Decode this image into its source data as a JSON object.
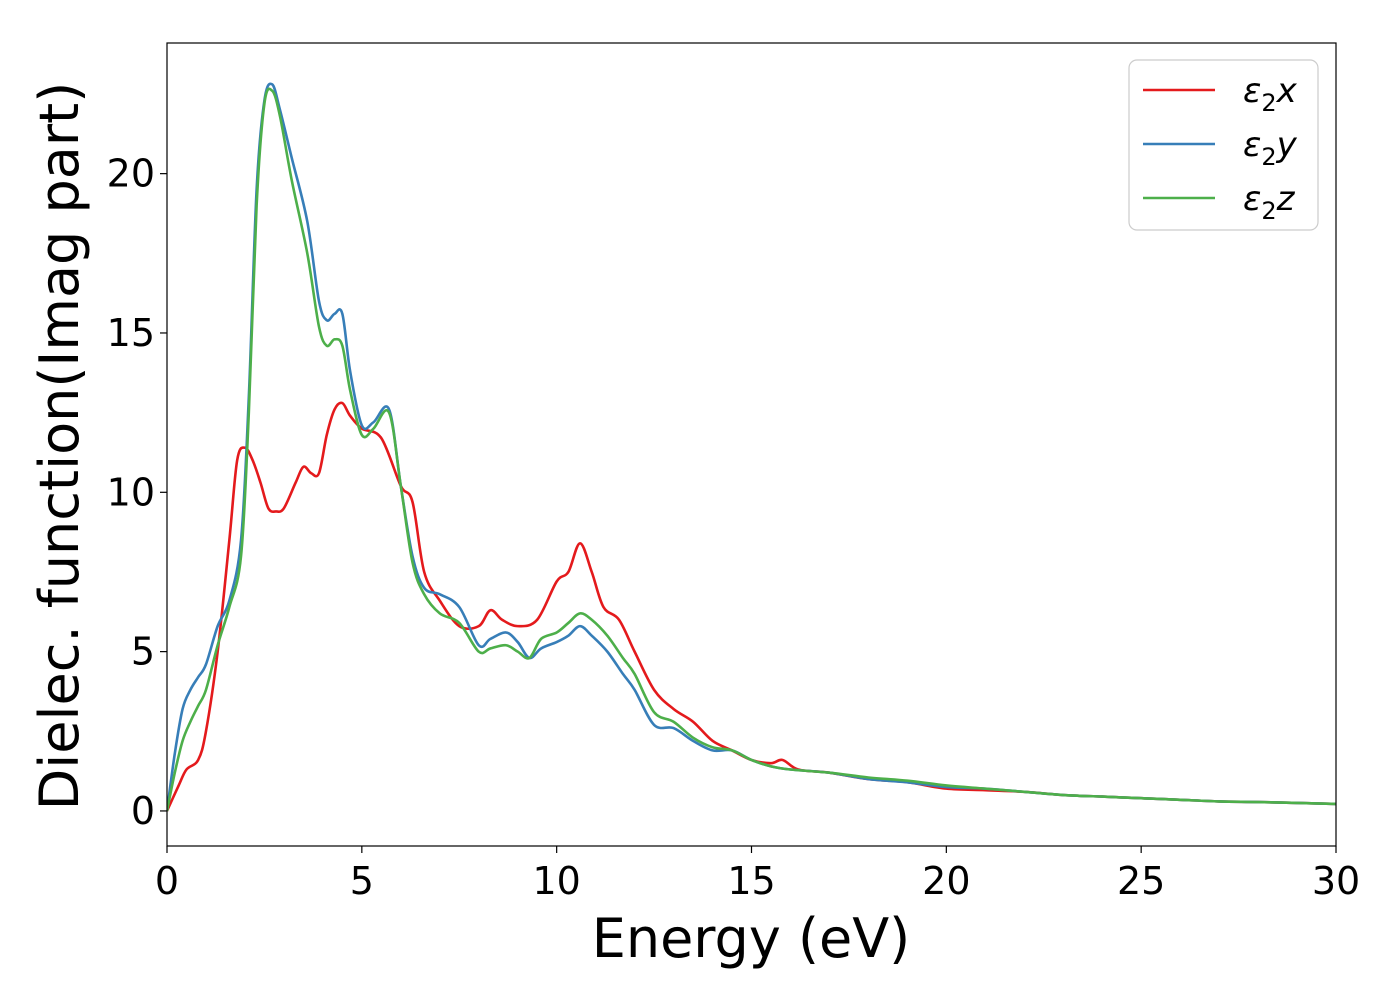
{
  "chart_data": {
    "type": "line",
    "title": "",
    "xlabel": "Energy (eV)",
    "ylabel": "Dielec. function(Imag part)",
    "xlim": [
      0,
      30
    ],
    "ylim": [
      -1.1,
      24.1
    ],
    "xticks": [
      0,
      5,
      10,
      15,
      20,
      25,
      30
    ],
    "yticks": [
      0,
      5,
      10,
      15,
      20
    ],
    "grid": false,
    "legend_position": "top-right",
    "series": [
      {
        "name": "ε₂x",
        "label_main": "ε",
        "label_sub": "2",
        "label_tail": "x",
        "color": "#e41a1c",
        "x": [
          0,
          0.3,
          0.5,
          0.8,
          1.0,
          1.3,
          1.6,
          1.8,
          2.0,
          2.2,
          2.4,
          2.6,
          2.8,
          3.0,
          3.3,
          3.5,
          3.7,
          3.9,
          4.1,
          4.3,
          4.5,
          4.7,
          5.0,
          5.5,
          6.0,
          6.3,
          6.6,
          7.0,
          7.5,
          8.0,
          8.3,
          8.6,
          9.0,
          9.5,
          10.0,
          10.3,
          10.6,
          10.9,
          11.2,
          11.6,
          12.0,
          12.5,
          13.0,
          13.5,
          14.0,
          14.5,
          15.0,
          15.5,
          15.8,
          16.2,
          17.0,
          18.0,
          19.0,
          20.0,
          21.0,
          22.0,
          23.0,
          24.0,
          25.0,
          26.0,
          27.0,
          28.0,
          29.0,
          30.0
        ],
        "y": [
          0,
          0.8,
          1.3,
          1.6,
          2.5,
          5.0,
          8.5,
          11.0,
          11.4,
          11.0,
          10.3,
          9.5,
          9.4,
          9.5,
          10.3,
          10.8,
          10.6,
          10.6,
          11.8,
          12.6,
          12.8,
          12.4,
          12.0,
          11.7,
          10.2,
          9.7,
          7.5,
          6.6,
          5.8,
          5.8,
          6.3,
          6.0,
          5.8,
          6.0,
          7.2,
          7.5,
          8.4,
          7.5,
          6.4,
          6.0,
          5.0,
          3.8,
          3.2,
          2.8,
          2.2,
          1.9,
          1.6,
          1.5,
          1.6,
          1.3,
          1.2,
          1.0,
          0.9,
          0.7,
          0.65,
          0.6,
          0.5,
          0.45,
          0.4,
          0.35,
          0.3,
          0.28,
          0.25,
          0.22
        ]
      },
      {
        "name": "ε₂y",
        "label_main": "ε",
        "label_sub": "2",
        "label_tail": "y",
        "color": "#377eb8",
        "x": [
          0,
          0.2,
          0.4,
          0.6,
          0.8,
          1.0,
          1.3,
          1.6,
          1.9,
          2.1,
          2.3,
          2.5,
          2.7,
          2.9,
          3.2,
          3.6,
          3.9,
          4.1,
          4.3,
          4.5,
          4.7,
          5.0,
          5.3,
          5.7,
          6.0,
          6.3,
          6.6,
          7.0,
          7.5,
          8.0,
          8.3,
          8.7,
          9.0,
          9.3,
          9.6,
          10.0,
          10.3,
          10.6,
          10.9,
          11.3,
          11.7,
          12.0,
          12.5,
          13.0,
          13.5,
          14.0,
          14.5,
          15.0,
          15.5,
          16.0,
          17.0,
          18.0,
          19.0,
          20.0,
          21.0,
          22.0,
          23.0,
          24.0,
          25.0,
          26.0,
          27.0,
          28.0,
          29.0,
          30.0
        ],
        "y": [
          0,
          1.8,
          3.2,
          3.8,
          4.2,
          4.6,
          5.8,
          6.6,
          8.5,
          13.0,
          19.5,
          22.3,
          22.8,
          22.0,
          20.5,
          18.5,
          16.0,
          15.4,
          15.6,
          15.6,
          13.8,
          12.1,
          12.2,
          12.6,
          10.2,
          8.0,
          7.0,
          6.8,
          6.4,
          5.2,
          5.4,
          5.6,
          5.3,
          4.8,
          5.1,
          5.3,
          5.5,
          5.8,
          5.5,
          5.0,
          4.3,
          3.8,
          2.7,
          2.6,
          2.2,
          1.9,
          1.9,
          1.6,
          1.4,
          1.3,
          1.2,
          1.0,
          0.9,
          0.75,
          0.7,
          0.6,
          0.5,
          0.45,
          0.4,
          0.35,
          0.3,
          0.28,
          0.25,
          0.22
        ]
      },
      {
        "name": "ε₂z",
        "label_main": "ε",
        "label_sub": "2",
        "label_tail": "z",
        "color": "#4daf4a",
        "x": [
          0,
          0.2,
          0.4,
          0.6,
          0.8,
          1.0,
          1.3,
          1.6,
          1.9,
          2.1,
          2.3,
          2.5,
          2.7,
          2.9,
          3.2,
          3.6,
          3.9,
          4.1,
          4.3,
          4.5,
          4.7,
          5.0,
          5.3,
          5.7,
          6.0,
          6.3,
          6.6,
          7.0,
          7.5,
          8.0,
          8.3,
          8.7,
          9.0,
          9.3,
          9.6,
          10.0,
          10.3,
          10.6,
          10.9,
          11.3,
          11.7,
          12.0,
          12.5,
          13.0,
          13.5,
          14.0,
          14.5,
          15.0,
          15.5,
          16.0,
          17.0,
          18.0,
          19.0,
          20.0,
          21.0,
          22.0,
          23.0,
          24.0,
          25.0,
          26.0,
          27.0,
          28.0,
          29.0,
          30.0
        ],
        "y": [
          0,
          1.2,
          2.2,
          2.8,
          3.3,
          3.8,
          5.2,
          6.4,
          8.0,
          12.5,
          19.0,
          22.2,
          22.6,
          21.8,
          19.8,
          17.5,
          15.2,
          14.6,
          14.8,
          14.6,
          13.2,
          11.8,
          12.0,
          12.5,
          10.2,
          7.8,
          6.8,
          6.2,
          5.9,
          5.0,
          5.1,
          5.2,
          5.0,
          4.8,
          5.4,
          5.6,
          5.9,
          6.2,
          6.0,
          5.5,
          4.8,
          4.3,
          3.1,
          2.8,
          2.3,
          2.0,
          1.9,
          1.6,
          1.4,
          1.3,
          1.2,
          1.05,
          0.95,
          0.8,
          0.7,
          0.6,
          0.5,
          0.45,
          0.4,
          0.35,
          0.3,
          0.28,
          0.25,
          0.22
        ]
      }
    ]
  }
}
